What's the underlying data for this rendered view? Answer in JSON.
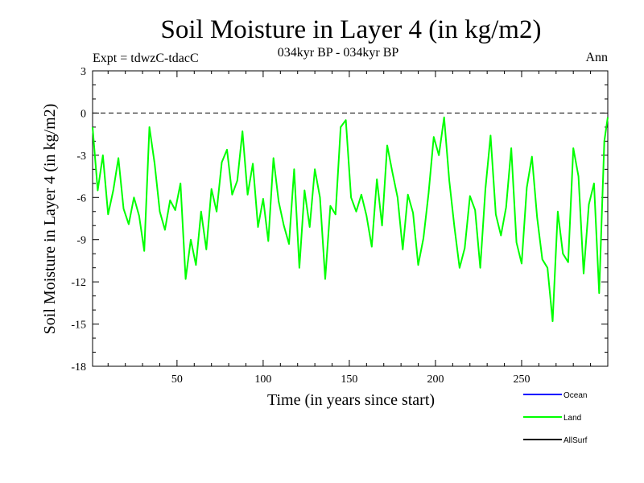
{
  "chart_data": {
    "type": "line",
    "title": "Soil Moisture in Layer 4 (in kg/m2)",
    "subtitle": "034kyr BP - 034kyr BP",
    "left_label": "Expt = tdwzC-tdacC",
    "right_label": "Ann",
    "xlabel": "Time (in years since start)",
    "ylabel": "Soil Moisture in Layer 4 (in kg/m2)",
    "xlim": [
      1,
      300
    ],
    "ylim": [
      -18,
      3
    ],
    "xticks": [
      50,
      100,
      150,
      200,
      250
    ],
    "yticks": [
      3,
      0,
      -3,
      -6,
      -9,
      -12,
      -15,
      -18
    ],
    "reference_line": 0,
    "series": [
      {
        "name": "Land",
        "color": "#00ff00",
        "x": [
          1,
          4,
          7,
          10,
          13,
          16,
          19,
          22,
          25,
          28,
          31,
          34,
          37,
          40,
          43,
          46,
          49,
          52,
          55,
          58,
          61,
          64,
          67,
          70,
          73,
          76,
          79,
          82,
          85,
          88,
          91,
          94,
          97,
          100,
          103,
          106,
          109,
          112,
          115,
          118,
          121,
          124,
          127,
          130,
          133,
          136,
          139,
          142,
          145,
          148,
          151,
          154,
          157,
          160,
          163,
          166,
          169,
          172,
          175,
          178,
          181,
          184,
          187,
          190,
          193,
          196,
          199,
          202,
          205,
          208,
          211,
          214,
          217,
          220,
          223,
          226,
          229,
          232,
          235,
          238,
          241,
          244,
          247,
          250,
          253,
          256,
          259,
          262,
          265,
          268,
          271,
          274,
          277,
          280,
          283,
          286,
          289,
          292,
          295,
          298,
          300
        ],
        "values": [
          -1.0,
          -5.5,
          -3.0,
          -7.2,
          -5.5,
          -3.2,
          -6.8,
          -7.9,
          -6.0,
          -7.3,
          -9.8,
          -1.0,
          -3.6,
          -7.0,
          -8.3,
          -6.2,
          -6.9,
          -5.0,
          -11.8,
          -9.0,
          -10.8,
          -7.0,
          -9.7,
          -5.4,
          -7.0,
          -3.5,
          -2.6,
          -5.8,
          -4.8,
          -1.3,
          -5.8,
          -3.6,
          -8.1,
          -6.1,
          -9.1,
          -3.2,
          -6.3,
          -8.0,
          -9.3,
          -4.0,
          -11.0,
          -5.5,
          -8.1,
          -4.0,
          -6.0,
          -11.8,
          -6.6,
          -7.2,
          -1.0,
          -0.5,
          -6.0,
          -7.0,
          -5.8,
          -7.3,
          -9.5,
          -4.7,
          -8.0,
          -2.3,
          -4.2,
          -6.0,
          -9.7,
          -5.8,
          -7.1,
          -10.8,
          -8.9,
          -5.7,
          -1.7,
          -3.0,
          -0.3,
          -4.8,
          -8.1,
          -11.0,
          -9.6,
          -5.9,
          -6.9,
          -11.0,
          -5.4,
          -1.6,
          -7.2,
          -8.7,
          -6.7,
          -2.5,
          -9.2,
          -10.7,
          -5.3,
          -3.1,
          -7.4,
          -10.4,
          -11.0,
          -14.8,
          -7.0,
          -10.0,
          -10.6,
          -2.5,
          -4.5,
          -11.4,
          -6.5,
          -5.0,
          -12.8,
          -2.0,
          -0.3
        ]
      },
      {
        "name": "Ocean",
        "color": "#0000ff",
        "values": []
      },
      {
        "name": "AllSurf",
        "color": "#000000",
        "values": []
      }
    ]
  }
}
